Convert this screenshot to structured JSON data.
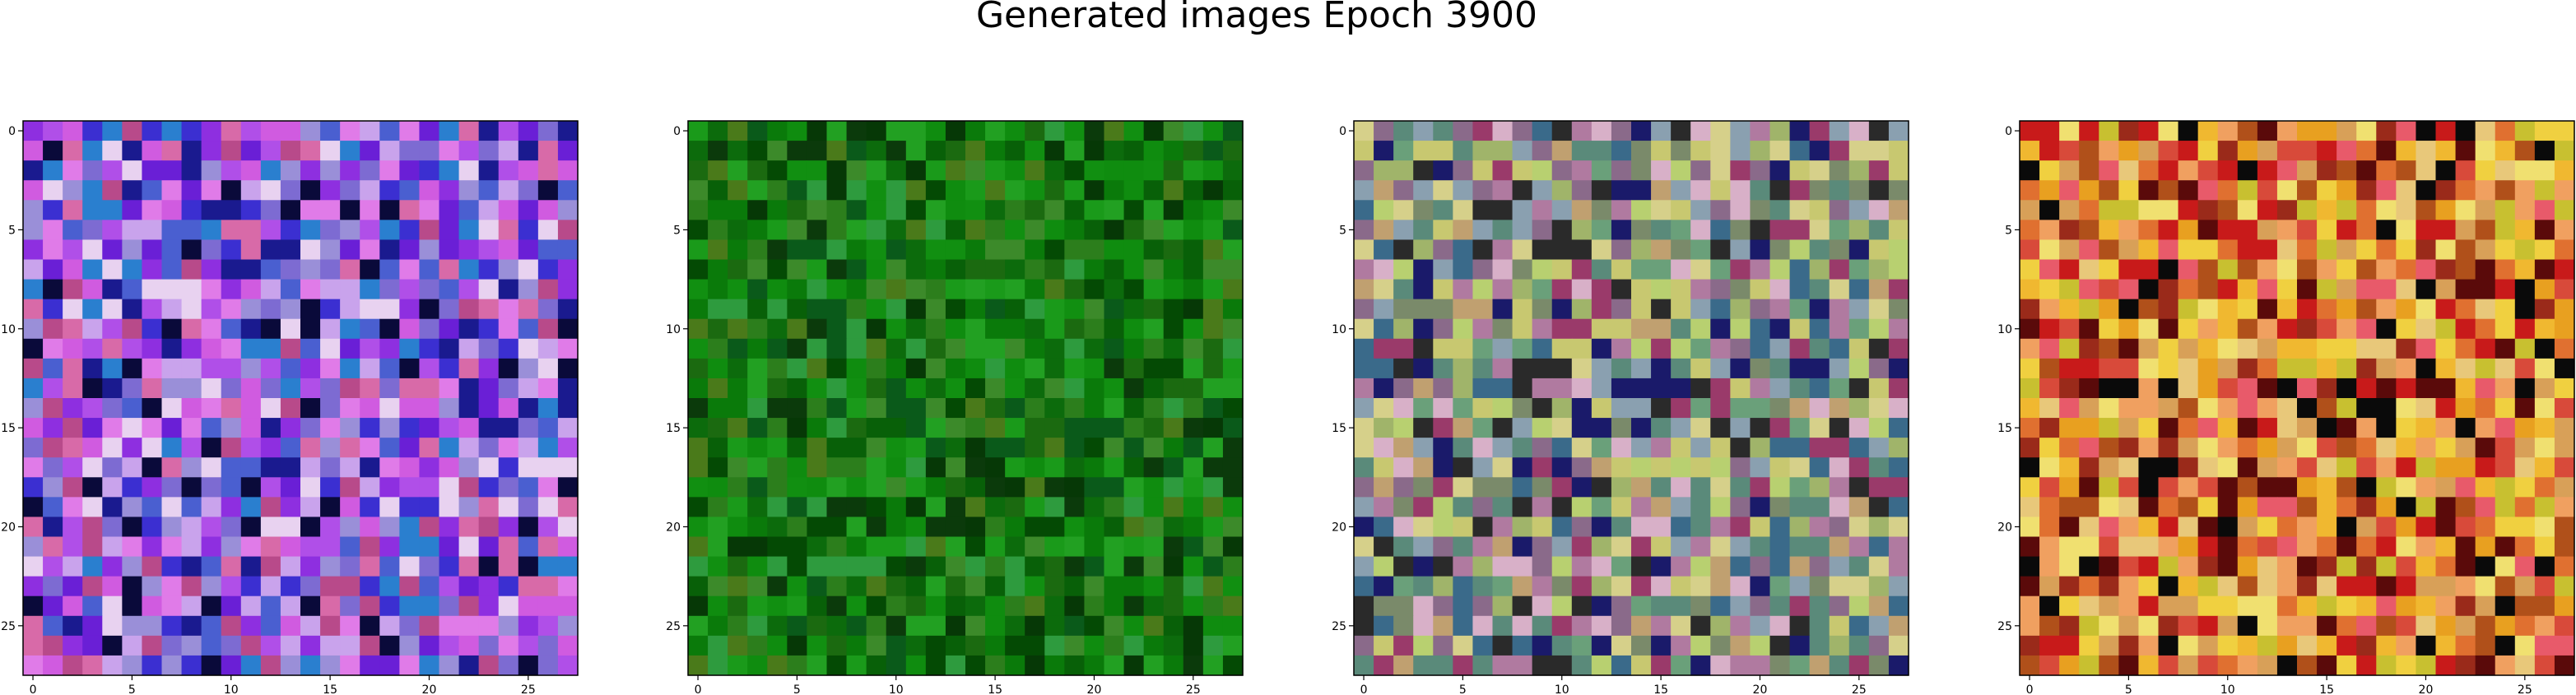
{
  "chart_data": {
    "type": "heatmap",
    "title": "Generated images Epoch 3900",
    "grid": false,
    "panels": [
      {
        "name": "",
        "grid_size": [
          28,
          28
        ],
        "xlim": [
          -0.5,
          27.5
        ],
        "ylim": [
          27.5,
          -0.5
        ],
        "xticks": [
          0,
          5,
          10,
          15,
          20,
          25
        ],
        "yticks": [
          0,
          5,
          10,
          15,
          20,
          25
        ],
        "palette": [
          "#1a1a8f",
          "#3b2fd1",
          "#6a1fd6",
          "#8e2fe0",
          "#b04fe8",
          "#d05be0",
          "#e07be8",
          "#c9a3ec",
          "#9a8fd8",
          "#7d6bd2",
          "#4a5fd0",
          "#2a7fcf",
          "#d86aa8",
          "#b84a8a",
          "#0a0a3a",
          "#e8d2f0"
        ],
        "seed": 11
      },
      {
        "name": "",
        "grid_size": [
          28,
          28
        ],
        "xlim": [
          -0.5,
          27.5
        ],
        "ylim": [
          27.5,
          -0.5
        ],
        "xticks": [
          0,
          5,
          10,
          15,
          20,
          25
        ],
        "yticks": [
          0,
          5,
          10,
          15,
          20,
          25
        ],
        "palette": [
          "#0a7a0a",
          "#0f8c0f",
          "#118f11",
          "#1a9a1a",
          "#0c6b0c",
          "#086008",
          "#044a04",
          "#0a5a1a",
          "#2c7e1c",
          "#3c8a2a",
          "#1b6a10",
          "#0b3a0b",
          "#22a022",
          "#063806",
          "#4a7a1a",
          "#2e9b3e"
        ],
        "seed": 22
      },
      {
        "name": "",
        "grid_size": [
          28,
          28
        ],
        "xlim": [
          -0.5,
          27.5
        ],
        "ylim": [
          27.5,
          -0.5
        ],
        "xticks": [
          0,
          5,
          10,
          15,
          20,
          25
        ],
        "yticks": [
          0,
          5,
          10,
          15,
          20,
          25
        ],
        "palette": [
          "#7a8a6a",
          "#a0b46a",
          "#c8c870",
          "#d6d08a",
          "#8a6a8a",
          "#b07aa0",
          "#5a8a7a",
          "#3a6a8a",
          "#1a1a6a",
          "#9a3a6a",
          "#c0a070",
          "#6aa07a",
          "#2a2a2a",
          "#d8b0c8",
          "#8aa0b0",
          "#b8d070"
        ],
        "seed": 33
      },
      {
        "name": "",
        "grid_size": [
          28,
          28
        ],
        "xlim": [
          -0.5,
          27.5
        ],
        "ylim": [
          27.5,
          -0.5
        ],
        "xticks": [
          0,
          5,
          10,
          15,
          20,
          25
        ],
        "yticks": [
          0,
          5,
          10,
          15,
          20,
          25
        ],
        "palette": [
          "#e8a020",
          "#f0b830",
          "#e07030",
          "#d84a3a",
          "#c81a1a",
          "#f0d040",
          "#e8c87a",
          "#d8a058",
          "#9a2a1a",
          "#5a0a0a",
          "#e85a6a",
          "#c8c030",
          "#f0a060",
          "#b0501a",
          "#0a0a0a",
          "#f0e070"
        ],
        "seed": 44
      }
    ]
  }
}
